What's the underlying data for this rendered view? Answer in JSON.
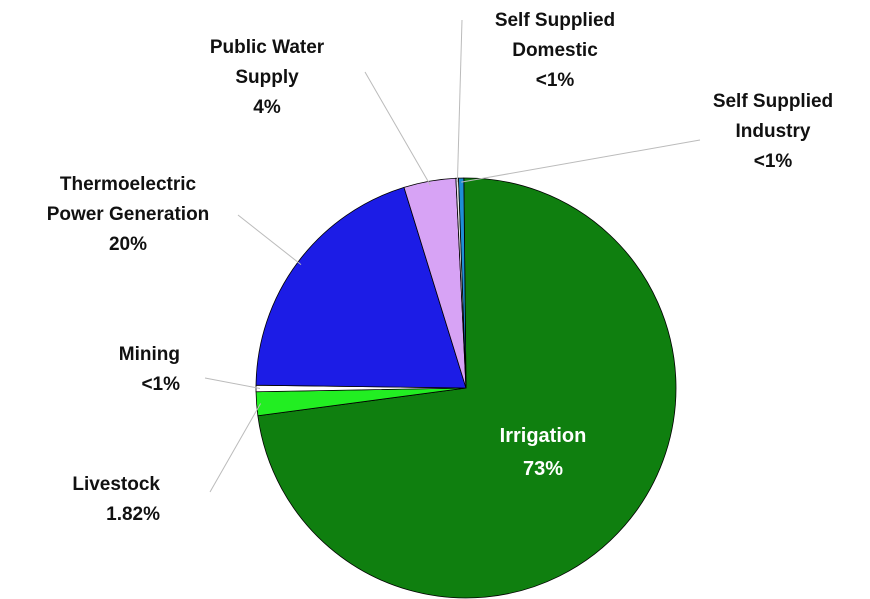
{
  "chart_data": {
    "type": "pie",
    "title": "",
    "slices": [
      {
        "label_lines": [
          "Irrigation",
          "73%"
        ],
        "value": 73.0,
        "color": "#0f7f0f"
      },
      {
        "label_lines": [
          "Livestock",
          "1.82%"
        ],
        "value": 1.82,
        "color": "#22ee22"
      },
      {
        "label_lines": [
          "Mining",
          "<1%"
        ],
        "value": 0.5,
        "color": "#ffffff"
      },
      {
        "label_lines": [
          "Thermoelectric",
          "Power Generation",
          "20%"
        ],
        "value": 20.0,
        "color": "#1c1ce6"
      },
      {
        "label_lines": [
          "Public Water",
          "Supply",
          "4%"
        ],
        "value": 4.0,
        "color": "#d7a3f5"
      },
      {
        "label_lines": [
          "Self Supplied",
          "Domestic",
          "<1%"
        ],
        "value": 0.2,
        "color": "#e8e8e8"
      },
      {
        "label_lines": [
          "Self Supplied",
          "Industry",
          "<1%"
        ],
        "value": 0.4,
        "color": "#1f8fd6"
      }
    ],
    "legend": "none",
    "labels": "outside with leader lines; Irrigation label inside slice"
  }
}
